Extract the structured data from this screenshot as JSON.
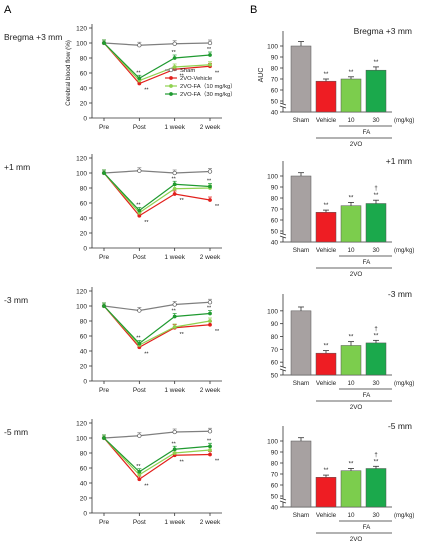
{
  "panel_letters": {
    "a": "A",
    "b": "B"
  },
  "colors": {
    "sham": "#7f7f7f",
    "vehicle": "#e2201c",
    "fa10": "#8fd14f",
    "fa30": "#1f9a30",
    "sham_bar": "#a7a1a1",
    "vehicle_bar": "#ee1d23",
    "fa10_bar": "#7ccd4d",
    "fa30_bar": "#1ba94c"
  },
  "line_ylabel": "Cerebral blood flow (%)",
  "bar_ylabel": "AUC",
  "bar_xlabels": {
    "sham": "Sham",
    "vehicle": "Vehicle",
    "d10": "10",
    "d30": "30",
    "unit": "(mg/kg)",
    "fa": "FA",
    "group": "2VO"
  },
  "legend": {
    "sham": "Sham",
    "vehicle": "2VO-Vehicle",
    "fa10": "2VO-FA（10 mg/kg）",
    "fa30": "2VO-FA（30 mg/kg）"
  },
  "significance": {
    "double": "**",
    "single": "*",
    "dagger": "†"
  },
  "chart_data": [
    {
      "type": "line",
      "row_label": "Bregma +3 mm",
      "categories": [
        "Pre",
        "Post",
        "1 week",
        "2 week"
      ],
      "ylim": [
        0,
        120
      ],
      "yticks": [
        0,
        20,
        40,
        60,
        80,
        100,
        120
      ],
      "series": [
        {
          "name": "Sham",
          "values": [
            100,
            97,
            99,
            100
          ]
        },
        {
          "name": "2VO-Vehicle",
          "values": [
            100,
            46,
            65,
            69
          ]
        },
        {
          "name": "2VO-FA（10 mg/kg）",
          "values": [
            100,
            50,
            68,
            71
          ]
        },
        {
          "name": "2VO-FA（30 mg/kg）",
          "values": [
            100,
            53,
            80,
            84
          ]
        }
      ]
    },
    {
      "type": "line",
      "row_label": "+1 mm",
      "categories": [
        "Pre",
        "Post",
        "1 week",
        "2 week"
      ],
      "ylim": [
        0,
        120
      ],
      "yticks": [
        0,
        20,
        40,
        60,
        80,
        100,
        120
      ],
      "series": [
        {
          "name": "Sham",
          "values": [
            100,
            103,
            100,
            102
          ]
        },
        {
          "name": "2VO-Vehicle",
          "values": [
            100,
            43,
            72,
            64
          ]
        },
        {
          "name": "2VO-FA（10 mg/kg）",
          "values": [
            100,
            47,
            79,
            80
          ]
        },
        {
          "name": "2VO-FA（30 mg/kg）",
          "values": [
            100,
            50,
            85,
            82
          ]
        }
      ]
    },
    {
      "type": "line",
      "row_label": "-3 mm",
      "categories": [
        "Pre",
        "Post",
        "1 week",
        "2 week"
      ],
      "ylim": [
        0,
        120
      ],
      "yticks": [
        0,
        20,
        40,
        60,
        80,
        100,
        120
      ],
      "series": [
        {
          "name": "Sham",
          "values": [
            100,
            94,
            102,
            105
          ]
        },
        {
          "name": "2VO-Vehicle",
          "values": [
            100,
            45,
            71,
            75
          ]
        },
        {
          "name": "2VO-FA（10 mg/kg）",
          "values": [
            100,
            48,
            72,
            80
          ]
        },
        {
          "name": "2VO-FA（30 mg/kg）",
          "values": [
            100,
            50,
            86,
            90
          ]
        }
      ]
    },
    {
      "type": "line",
      "row_label": "-5 mm",
      "categories": [
        "Pre",
        "Post",
        "1 week",
        "2 week"
      ],
      "ylim": [
        0,
        120
      ],
      "yticks": [
        0,
        20,
        40,
        60,
        80,
        100,
        120
      ],
      "series": [
        {
          "name": "Sham",
          "values": [
            100,
            103,
            108,
            109
          ]
        },
        {
          "name": "2VO-Vehicle",
          "values": [
            100,
            45,
            77,
            78
          ]
        },
        {
          "name": "2VO-FA（10 mg/kg）",
          "values": [
            100,
            51,
            80,
            84
          ]
        },
        {
          "name": "2VO-FA（30 mg/kg）",
          "values": [
            100,
            55,
            85,
            89
          ]
        }
      ]
    },
    {
      "type": "bar",
      "title": "Bregma +3 mm",
      "categories": [
        "Sham",
        "Vehicle",
        "10",
        "30"
      ],
      "values": [
        100,
        68,
        70,
        78
      ],
      "errors": [
        4,
        2,
        2,
        3
      ],
      "ylim": [
        40,
        110
      ],
      "yticks": [
        40,
        50,
        60,
        70,
        80,
        90,
        100
      ],
      "annotations": [
        "",
        "**",
        "**",
        "**"
      ]
    },
    {
      "type": "bar",
      "title": "+1 mm",
      "categories": [
        "Sham",
        "Vehicle",
        "10",
        "30"
      ],
      "values": [
        100,
        67,
        73,
        75
      ],
      "errors": [
        3,
        2,
        3,
        3
      ],
      "ylim": [
        40,
        110
      ],
      "yticks": [
        40,
        50,
        60,
        70,
        80,
        90,
        100
      ],
      "annotations": [
        "",
        "**",
        "**",
        "†\n**"
      ]
    },
    {
      "type": "bar",
      "title": "-3 mm",
      "categories": [
        "Sham",
        "Vehicle",
        "10",
        "30"
      ],
      "values": [
        100,
        67,
        73,
        75
      ],
      "errors": [
        3,
        2,
        3,
        2
      ],
      "ylim": [
        50,
        110
      ],
      "yticks": [
        50,
        60,
        70,
        80,
        90,
        100
      ],
      "annotations": [
        "",
        "**",
        "**",
        "†\n**"
      ]
    },
    {
      "type": "bar",
      "title": "-5 mm",
      "categories": [
        "Sham",
        "Vehicle",
        "10",
        "30"
      ],
      "values": [
        100,
        67,
        73,
        75
      ],
      "errors": [
        3,
        2,
        2,
        2
      ],
      "ylim": [
        40,
        110
      ],
      "yticks": [
        40,
        50,
        60,
        70,
        80,
        90,
        100
      ],
      "annotations": [
        "",
        "**",
        "**",
        "†\n**"
      ]
    }
  ]
}
